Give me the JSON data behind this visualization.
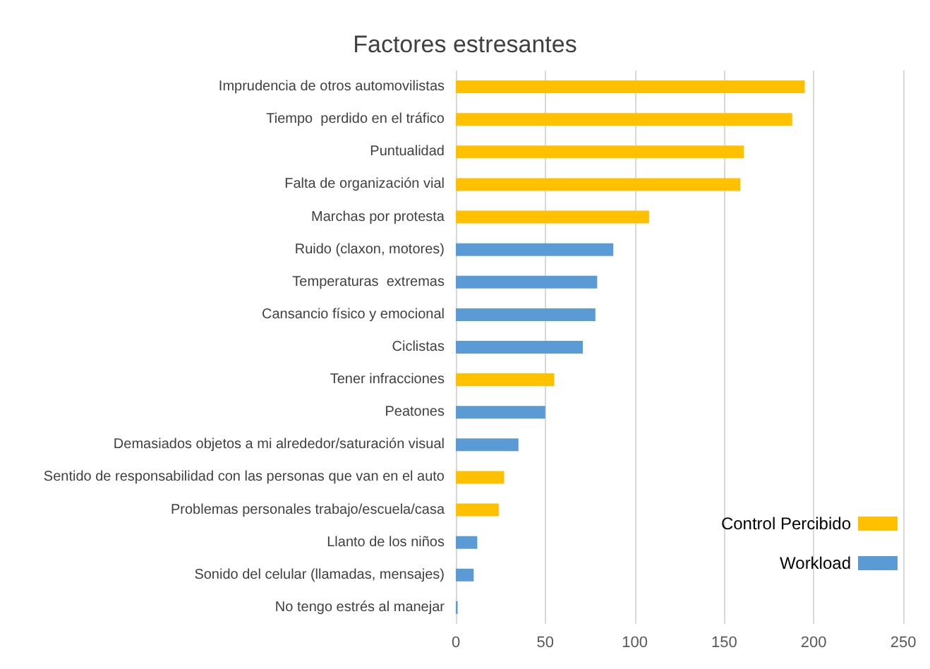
{
  "chart_data": {
    "type": "bar",
    "orientation": "horizontal",
    "title": "Factores estresantes",
    "categories": [
      "Imprudencia de otros automovilistas",
      "Tiempo  perdido en el tráfico",
      "Puntualidad",
      "Falta de organización vial",
      "Marchas por protesta",
      "Ruido (claxon, motores)",
      "Temperaturas  extremas",
      "Cansancio físico y emocional",
      "Ciclistas",
      "Tener infracciones",
      "Peatones",
      "Demasiados objetos a mi alrededor/saturación visual",
      "Sentido de responsabilidad con las personas que van en el auto",
      "Problemas personales trabajo/escuela/casa",
      "Llanto de los niños",
      "Sonido del celular (llamadas, mensajes)",
      "No tengo estrés al manejar"
    ],
    "series": [
      {
        "name": "Control Percibido",
        "color": "#ffc000",
        "values": [
          195,
          188,
          161,
          159,
          108,
          null,
          null,
          null,
          null,
          55,
          null,
          null,
          27,
          24,
          null,
          null,
          null
        ]
      },
      {
        "name": "Workload",
        "color": "#5b9bd5",
        "values": [
          null,
          null,
          null,
          null,
          null,
          88,
          79,
          78,
          71,
          null,
          50,
          35,
          null,
          null,
          12,
          10,
          1
        ]
      }
    ],
    "xlim": [
      0,
      250
    ],
    "xticks": [
      0,
      50,
      100,
      150,
      200,
      250
    ],
    "grid": "x",
    "legend": "bottom right"
  }
}
